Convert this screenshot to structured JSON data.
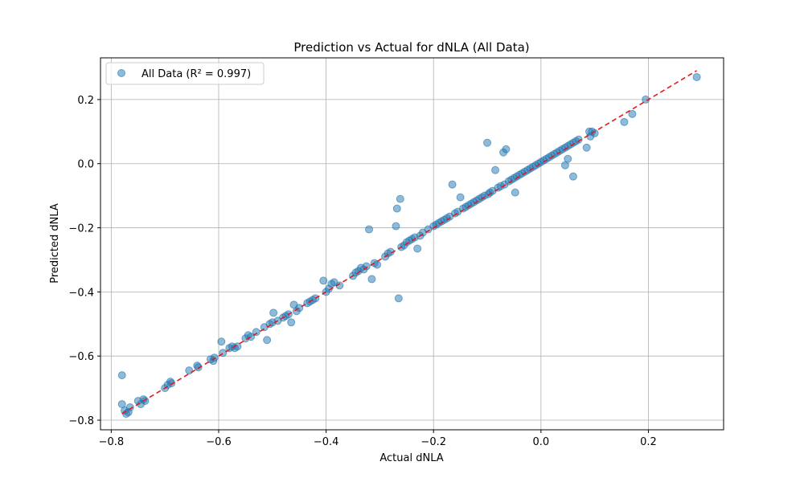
{
  "chart_data": {
    "type": "scatter",
    "title": "Prediction vs Actual for dNLA (All Data)",
    "xlabel": "Actual dNLA",
    "ylabel": "Predicted dNLA",
    "xlim": [
      -0.82,
      0.34
    ],
    "ylim": [
      -0.83,
      0.33
    ],
    "xticks": [
      -0.8,
      -0.6,
      -0.4,
      -0.2,
      0.0,
      0.2
    ],
    "yticks": [
      -0.8,
      -0.6,
      -0.4,
      -0.2,
      0.0,
      0.2
    ],
    "xtick_labels": [
      "−0.8",
      "−0.6",
      "−0.4",
      "−0.2",
      "0.0",
      "0.2"
    ],
    "ytick_labels": [
      "−0.8",
      "−0.6",
      "−0.4",
      "−0.2",
      "0.0",
      "0.2"
    ],
    "grid": true,
    "legend_position": "top-left",
    "series": [
      {
        "name": "All Data (R² = 0.997)",
        "color": "#1f77b4",
        "alpha": 0.5,
        "points": [
          [
            -0.78,
            -0.66
          ],
          [
            -0.78,
            -0.75
          ],
          [
            -0.775,
            -0.77
          ],
          [
            -0.772,
            -0.78
          ],
          [
            -0.768,
            -0.775
          ],
          [
            -0.765,
            -0.76
          ],
          [
            -0.75,
            -0.74
          ],
          [
            -0.745,
            -0.75
          ],
          [
            -0.74,
            -0.735
          ],
          [
            -0.737,
            -0.74
          ],
          [
            -0.7,
            -0.7
          ],
          [
            -0.695,
            -0.69
          ],
          [
            -0.69,
            -0.68
          ],
          [
            -0.688,
            -0.685
          ],
          [
            -0.655,
            -0.645
          ],
          [
            -0.64,
            -0.63
          ],
          [
            -0.638,
            -0.635
          ],
          [
            -0.615,
            -0.61
          ],
          [
            -0.61,
            -0.615
          ],
          [
            -0.608,
            -0.605
          ],
          [
            -0.595,
            -0.555
          ],
          [
            -0.592,
            -0.59
          ],
          [
            -0.58,
            -0.575
          ],
          [
            -0.575,
            -0.57
          ],
          [
            -0.57,
            -0.575
          ],
          [
            -0.565,
            -0.57
          ],
          [
            -0.55,
            -0.545
          ],
          [
            -0.545,
            -0.535
          ],
          [
            -0.54,
            -0.54
          ],
          [
            -0.53,
            -0.525
          ],
          [
            -0.515,
            -0.51
          ],
          [
            -0.51,
            -0.55
          ],
          [
            -0.505,
            -0.5
          ],
          [
            -0.5,
            -0.495
          ],
          [
            -0.498,
            -0.465
          ],
          [
            -0.49,
            -0.49
          ],
          [
            -0.48,
            -0.48
          ],
          [
            -0.475,
            -0.475
          ],
          [
            -0.47,
            -0.47
          ],
          [
            -0.465,
            -0.495
          ],
          [
            -0.46,
            -0.44
          ],
          [
            -0.455,
            -0.46
          ],
          [
            -0.45,
            -0.45
          ],
          [
            -0.435,
            -0.435
          ],
          [
            -0.43,
            -0.43
          ],
          [
            -0.425,
            -0.425
          ],
          [
            -0.42,
            -0.42
          ],
          [
            -0.405,
            -0.365
          ],
          [
            -0.4,
            -0.4
          ],
          [
            -0.395,
            -0.39
          ],
          [
            -0.39,
            -0.375
          ],
          [
            -0.385,
            -0.37
          ],
          [
            -0.375,
            -0.38
          ],
          [
            -0.35,
            -0.35
          ],
          [
            -0.345,
            -0.34
          ],
          [
            -0.34,
            -0.335
          ],
          [
            -0.335,
            -0.325
          ],
          [
            -0.33,
            -0.33
          ],
          [
            -0.325,
            -0.32
          ],
          [
            -0.32,
            -0.205
          ],
          [
            -0.315,
            -0.36
          ],
          [
            -0.31,
            -0.31
          ],
          [
            -0.305,
            -0.315
          ],
          [
            -0.29,
            -0.29
          ],
          [
            -0.285,
            -0.28
          ],
          [
            -0.28,
            -0.275
          ],
          [
            -0.27,
            -0.195
          ],
          [
            -0.268,
            -0.14
          ],
          [
            -0.265,
            -0.42
          ],
          [
            -0.262,
            -0.11
          ],
          [
            -0.26,
            -0.26
          ],
          [
            -0.255,
            -0.255
          ],
          [
            -0.25,
            -0.245
          ],
          [
            -0.245,
            -0.24
          ],
          [
            -0.24,
            -0.235
          ],
          [
            -0.235,
            -0.23
          ],
          [
            -0.23,
            -0.265
          ],
          [
            -0.225,
            -0.225
          ],
          [
            -0.22,
            -0.215
          ],
          [
            -0.21,
            -0.205
          ],
          [
            -0.2,
            -0.195
          ],
          [
            -0.195,
            -0.19
          ],
          [
            -0.19,
            -0.185
          ],
          [
            -0.185,
            -0.18
          ],
          [
            -0.18,
            -0.175
          ],
          [
            -0.175,
            -0.17
          ],
          [
            -0.17,
            -0.165
          ],
          [
            -0.165,
            -0.065
          ],
          [
            -0.16,
            -0.155
          ],
          [
            -0.155,
            -0.15
          ],
          [
            -0.15,
            -0.105
          ],
          [
            -0.145,
            -0.14
          ],
          [
            -0.14,
            -0.135
          ],
          [
            -0.135,
            -0.13
          ],
          [
            -0.13,
            -0.125
          ],
          [
            -0.125,
            -0.12
          ],
          [
            -0.12,
            -0.115
          ],
          [
            -0.115,
            -0.11
          ],
          [
            -0.11,
            -0.105
          ],
          [
            -0.105,
            -0.1
          ],
          [
            -0.1,
            0.065
          ],
          [
            -0.098,
            -0.095
          ],
          [
            -0.095,
            -0.09
          ],
          [
            -0.09,
            -0.085
          ],
          [
            -0.085,
            -0.02
          ],
          [
            -0.08,
            -0.075
          ],
          [
            -0.075,
            -0.07
          ],
          [
            -0.07,
            0.035
          ],
          [
            -0.068,
            -0.065
          ],
          [
            -0.065,
            0.045
          ],
          [
            -0.06,
            -0.055
          ],
          [
            -0.055,
            -0.05
          ],
          [
            -0.05,
            -0.045
          ],
          [
            -0.048,
            -0.09
          ],
          [
            -0.045,
            -0.04
          ],
          [
            -0.04,
            -0.035
          ],
          [
            -0.035,
            -0.03
          ],
          [
            -0.03,
            -0.025
          ],
          [
            -0.025,
            -0.02
          ],
          [
            -0.02,
            -0.015
          ],
          [
            -0.015,
            -0.01
          ],
          [
            -0.01,
            -0.005
          ],
          [
            -0.005,
            0.0
          ],
          [
            0.0,
            0.005
          ],
          [
            0.005,
            0.01
          ],
          [
            0.01,
            0.015
          ],
          [
            0.015,
            0.02
          ],
          [
            0.02,
            0.025
          ],
          [
            0.025,
            0.03
          ],
          [
            0.03,
            0.035
          ],
          [
            0.035,
            0.04
          ],
          [
            0.04,
            0.045
          ],
          [
            0.045,
            0.05
          ],
          [
            0.05,
            0.055
          ],
          [
            0.055,
            0.06
          ],
          [
            0.06,
            0.065
          ],
          [
            0.065,
            0.07
          ],
          [
            0.07,
            0.075
          ],
          [
            0.085,
            0.05
          ],
          [
            0.09,
            0.1
          ],
          [
            0.092,
            0.085
          ],
          [
            0.095,
            0.1
          ],
          [
            0.06,
            -0.04
          ],
          [
            0.05,
            0.015
          ],
          [
            0.045,
            -0.005
          ],
          [
            0.1,
            0.095
          ],
          [
            0.155,
            0.13
          ],
          [
            0.17,
            0.155
          ],
          [
            0.195,
            0.2
          ],
          [
            0.29,
            0.27
          ]
        ]
      }
    ],
    "reference_line": {
      "color": "#e31a1c",
      "style": "dashed",
      "x": [
        -0.78,
        0.29
      ],
      "y": [
        -0.78,
        0.29
      ]
    }
  }
}
